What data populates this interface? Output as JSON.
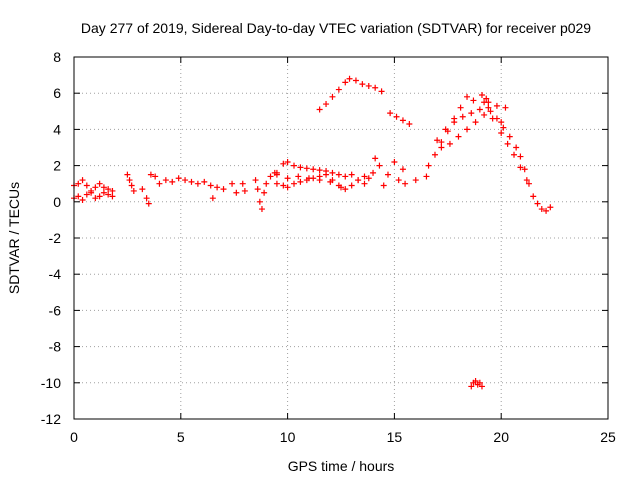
{
  "chart_data": {
    "type": "scatter",
    "title": "Day 277 of 2019, Sidereal Day-to-day VTEC variation (SDTVAR) for receiver p029",
    "xlabel": "GPS time / hours",
    "ylabel": "SDTVAR / TECUs",
    "xlim": [
      0,
      25
    ],
    "ylim": [
      -12,
      8
    ],
    "xticks": [
      "0",
      "5",
      "10",
      "15",
      "20",
      "25"
    ],
    "yticks": [
      "8",
      "6",
      "4",
      "2",
      "0",
      "-2",
      "-4",
      "-6",
      "-8",
      "-10",
      "-12"
    ],
    "grid": true,
    "marker": "+",
    "color": "#ff0000",
    "segments": [
      {
        "name": "early-upper",
        "x": [
          0.0,
          0.2,
          0.4,
          0.6,
          0.8,
          1.0,
          1.2,
          1.4,
          1.6,
          1.8
        ],
        "y": [
          0.9,
          1.0,
          1.2,
          0.9,
          0.6,
          0.8,
          1.0,
          0.8,
          0.7,
          0.6
        ]
      },
      {
        "name": "early-lower",
        "x": [
          0.0,
          0.2,
          0.4,
          0.6,
          0.8,
          1.0,
          1.2,
          1.4,
          1.6,
          1.8
        ],
        "y": [
          0.2,
          0.3,
          0.1,
          0.4,
          0.5,
          0.2,
          0.3,
          0.5,
          0.4,
          0.3
        ]
      },
      {
        "name": "scatter-2h",
        "x": [
          2.5,
          2.6,
          2.7,
          2.8,
          3.2,
          3.6,
          3.8,
          3.4,
          3.5
        ],
        "y": [
          1.5,
          1.2,
          0.9,
          0.6,
          0.7,
          1.5,
          1.4,
          0.2,
          -0.1
        ]
      },
      {
        "name": "band-4-7",
        "x": [
          4.0,
          4.3,
          4.6,
          4.9,
          5.2,
          5.5,
          5.8,
          6.1,
          6.4,
          6.7,
          7.0
        ],
        "y": [
          1.0,
          1.2,
          1.1,
          1.3,
          1.2,
          1.1,
          1.0,
          1.1,
          0.9,
          0.8,
          0.7
        ]
      },
      {
        "name": "scatter-7-8",
        "x": [
          7.4,
          7.6,
          7.9,
          8.0,
          6.5
        ],
        "y": [
          1.0,
          0.5,
          1.0,
          0.6,
          0.2
        ]
      },
      {
        "name": "rise-8-9",
        "x": [
          8.5,
          8.6,
          8.7,
          8.8,
          8.9,
          9.0,
          9.2,
          9.4
        ],
        "y": [
          1.2,
          0.7,
          0.0,
          -0.4,
          0.5,
          1.0,
          1.4,
          1.6
        ]
      },
      {
        "name": "upper-9-14",
        "x": [
          9.5,
          9.8,
          10.0,
          10.3,
          10.6,
          10.9,
          11.2,
          11.5,
          11.8,
          12.1,
          12.4,
          12.7,
          13.0,
          13.3,
          13.6
        ],
        "y": [
          1.6,
          2.1,
          2.2,
          2.0,
          1.9,
          1.85,
          1.8,
          1.75,
          1.7,
          1.6,
          1.5,
          1.4,
          1.5,
          1.2,
          1.0
        ]
      },
      {
        "name": "lower-9-14",
        "x": [
          9.5,
          9.8,
          10.0,
          10.3,
          10.6,
          10.9,
          11.2,
          11.5,
          11.8,
          12.1,
          12.4,
          12.7,
          13.0,
          13.3,
          13.6
        ],
        "y": [
          1.0,
          0.9,
          0.8,
          1.0,
          1.1,
          1.2,
          1.3,
          1.4,
          1.5,
          1.2,
          0.9,
          0.7,
          0.9,
          1.2,
          1.4
        ]
      },
      {
        "name": "mid-9-13",
        "x": [
          9.5,
          10.0,
          10.5,
          11.0,
          11.5,
          12.0,
          12.5
        ],
        "y": [
          1.5,
          1.3,
          1.4,
          1.3,
          1.2,
          1.1,
          0.8
        ]
      },
      {
        "name": "cluster-14-15",
        "x": [
          13.8,
          14.0,
          14.1,
          14.3,
          14.5,
          14.7,
          15.0,
          15.2,
          15.4,
          15.5
        ],
        "y": [
          1.3,
          1.6,
          2.4,
          2.0,
          0.9,
          1.5,
          2.2,
          1.2,
          1.8,
          1.0
        ]
      },
      {
        "name": "arc-11-14",
        "x": [
          11.5,
          11.8,
          12.1,
          12.4,
          12.7,
          12.9,
          13.2,
          13.5,
          13.8,
          14.1,
          14.4
        ],
        "y": [
          5.1,
          5.4,
          5.8,
          6.2,
          6.6,
          6.8,
          6.7,
          6.5,
          6.4,
          6.3,
          6.1
        ]
      },
      {
        "name": "arc-15",
        "x": [
          14.8,
          15.1,
          15.4,
          15.7
        ],
        "y": [
          4.9,
          4.7,
          4.5,
          4.3
        ]
      },
      {
        "name": "step-16",
        "x": [
          16.0,
          16.5
        ],
        "y": [
          1.2,
          1.4
        ]
      },
      {
        "name": "rise-16-18",
        "x": [
          16.6,
          16.9,
          17.2,
          17.5,
          17.8,
          18.1,
          18.4,
          18.7
        ],
        "y": [
          2.0,
          2.6,
          3.3,
          3.9,
          4.6,
          5.2,
          5.8,
          5.6
        ]
      },
      {
        "name": "upper-18-20",
        "x": [
          17.0,
          17.4,
          17.8,
          18.2,
          18.6,
          19.0,
          19.4,
          19.8,
          20.2
        ],
        "y": [
          3.4,
          4.0,
          4.4,
          4.7,
          4.9,
          5.1,
          5.5,
          5.3,
          5.2
        ]
      },
      {
        "name": "lower-18-20",
        "x": [
          17.2,
          17.6,
          18.0,
          18.4,
          18.8,
          19.2,
          19.6,
          20.0
        ],
        "y": [
          3.0,
          3.2,
          3.6,
          4.0,
          4.4,
          4.8,
          4.6,
          4.4
        ]
      },
      {
        "name": "peak-19",
        "x": [
          19.1,
          19.2,
          19.3,
          19.4,
          19.5
        ],
        "y": [
          5.9,
          5.5,
          5.7,
          5.2,
          5.0
        ]
      },
      {
        "name": "decline-20-22",
        "x": [
          19.8,
          20.1,
          20.4,
          20.7,
          20.9,
          21.1,
          21.3,
          21.5,
          21.7,
          21.9,
          22.1,
          22.3
        ],
        "y": [
          4.6,
          4.1,
          3.6,
          3.0,
          2.5,
          1.8,
          1.0,
          0.3,
          -0.1,
          -0.4,
          -0.5,
          -0.3
        ]
      },
      {
        "name": "decline-20-21-inner",
        "x": [
          20.0,
          20.3,
          20.6,
          20.9,
          21.2
        ],
        "y": [
          3.8,
          3.2,
          2.6,
          1.9,
          1.2
        ]
      },
      {
        "name": "outlier-19",
        "x": [
          18.6,
          18.7,
          18.8,
          18.9,
          19.0,
          19.1
        ],
        "y": [
          -10.2,
          -10.0,
          -9.9,
          -10.1,
          -10.0,
          -10.2
        ]
      }
    ]
  }
}
